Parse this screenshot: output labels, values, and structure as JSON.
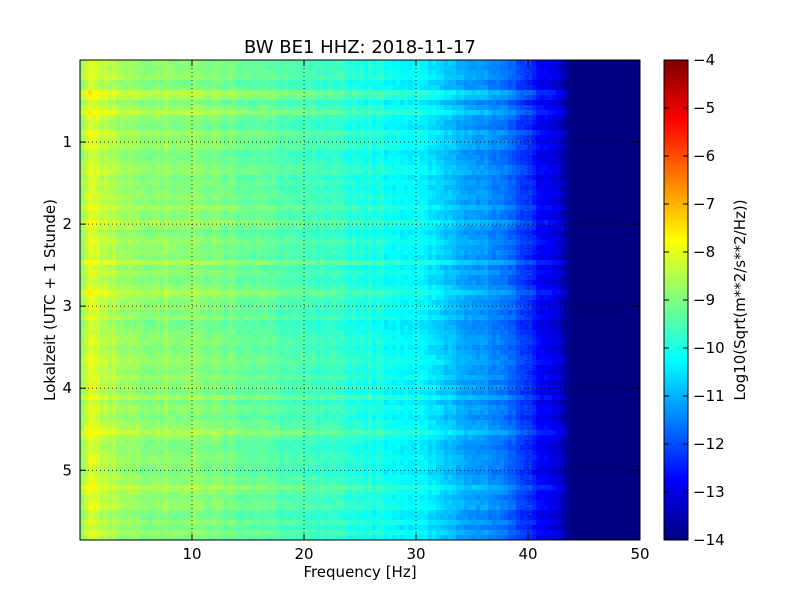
{
  "chart_data": {
    "type": "heatmap",
    "title": "BW BE1 HHZ: 2018-11-17",
    "xlabel": "Frequency [Hz]",
    "ylabel": "Lokalzeit (UTC + 1 Stunde)",
    "xlim": [
      0,
      50
    ],
    "ylim": [
      5.85,
      0.0
    ],
    "x_ticks": [
      10,
      20,
      30,
      40,
      50
    ],
    "y_ticks": [
      1,
      2,
      3,
      4,
      5
    ],
    "grid": true,
    "colormap": "jet",
    "colorbar": {
      "label": "Log10(Sqrt(m**2/s**2/Hz))",
      "range": [
        -14,
        -4
      ],
      "ticks": [
        -4,
        -5,
        -6,
        -7,
        -8,
        -9,
        -10,
        -11,
        -12,
        -13,
        -14
      ]
    },
    "profile": {
      "frequency_hz": [
        0.0,
        1.0,
        2.0,
        5.0,
        10.0,
        15.0,
        20.0,
        25.0,
        30.0,
        33.0,
        36.0,
        39.0,
        41.0,
        43.0,
        44.0,
        50.0
      ],
      "log10_value": [
        -8.9,
        -8.0,
        -8.4,
        -8.8,
        -8.9,
        -9.2,
        -9.6,
        -9.9,
        -10.3,
        -10.8,
        -11.3,
        -11.9,
        -12.7,
        -13.3,
        -14.0,
        -14.0
      ]
    }
  }
}
